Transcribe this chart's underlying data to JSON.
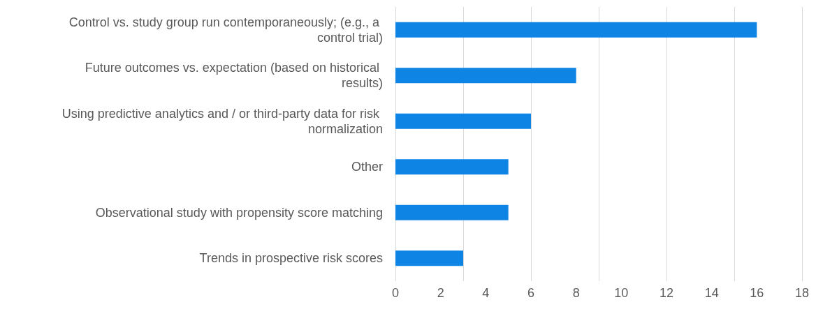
{
  "chart_data": {
    "type": "bar",
    "orientation": "horizontal",
    "categories": [
      "Control vs. study group run contemporaneously; (e.g., a control trial)",
      "Future outcomes vs. expectation (based on historical results)",
      "Using predictive analytics and / or third-party data for risk normalization",
      "Other",
      "Observational study with propensity score matching",
      "Trends in prospective risk scores"
    ],
    "values": [
      16,
      8,
      6,
      5,
      5,
      3
    ],
    "color": "#0e84e5",
    "xlim": [
      0,
      18
    ],
    "xticks": [
      0,
      2,
      4,
      6,
      8,
      10,
      12,
      14,
      16,
      18
    ],
    "grid": "x"
  }
}
